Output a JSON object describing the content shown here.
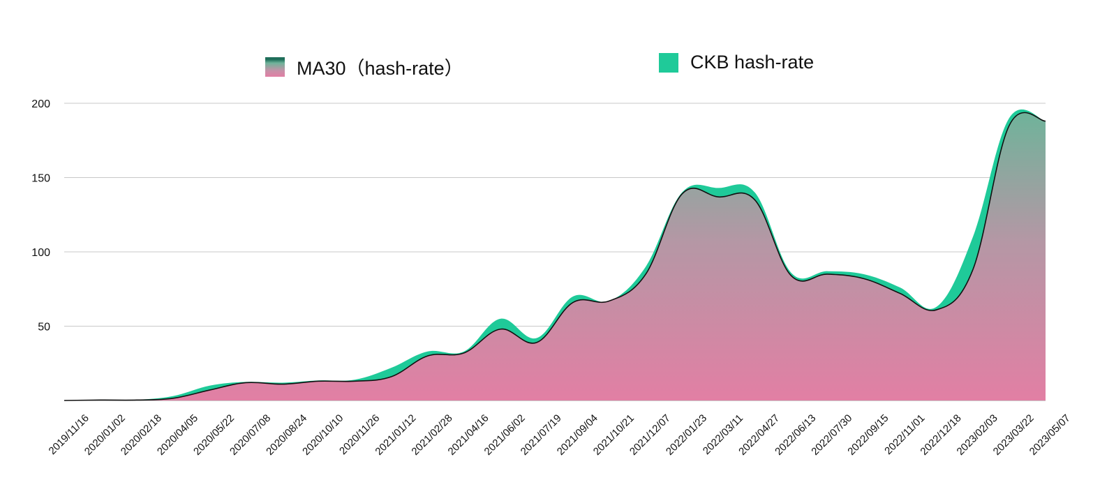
{
  "chart_data": {
    "type": "area",
    "title": "",
    "xlabel": "",
    "ylabel": "",
    "ylim": [
      0,
      200
    ],
    "y_ticks": [
      "200",
      "150",
      "100",
      "50"
    ],
    "grid": true,
    "legend_placement": "top",
    "x_tick_labels": [
      "2019/11/16",
      "2020/01/02",
      "2020/02/18",
      "2020/04/05",
      "2020/05/22",
      "2020/07/08",
      "2020/08/24",
      "2020/10/10",
      "2020/11/26",
      "2021/01/12",
      "2021/02/28",
      "2021/04/16",
      "2021/06/02",
      "2021/07/19",
      "2021/09/04",
      "2021/10/21",
      "2021/12/07",
      "2022/01/23",
      "2022/03/11",
      "2022/04/27",
      "2022/06/13",
      "2022/07/30",
      "2022/09/15",
      "2022/11/01",
      "2022/12/18",
      "2023/02/03",
      "2023/03/22",
      "2023/05/07"
    ],
    "x": [
      "2019/11/16",
      "2020/01/02",
      "2020/02/18",
      "2020/04/05",
      "2020/05/22",
      "2020/07/08",
      "2020/08/24",
      "2020/10/10",
      "2020/11/26",
      "2021/01/12",
      "2021/02/28",
      "2021/04/16",
      "2021/06/02",
      "2021/07/19",
      "2021/09/04",
      "2021/10/21",
      "2021/12/07",
      "2022/01/23",
      "2022/03/11",
      "2022/04/27",
      "2022/06/13",
      "2022/07/30",
      "2022/09/15",
      "2022/11/01",
      "2022/12/18",
      "2023/02/03",
      "2023/03/22",
      "2023/05/07"
    ],
    "series": [
      {
        "name": "CKB hash-rate",
        "color": "#1fca99",
        "values": [
          0,
          0.5,
          0.5,
          3,
          10,
          12.5,
          12,
          13.5,
          14,
          22,
          33,
          33,
          55,
          42,
          70,
          67,
          90,
          140,
          143,
          140,
          86,
          87,
          85,
          76,
          63,
          110,
          190,
          188
        ]
      },
      {
        "name": "MA30（hash-rate）",
        "color_top": "#6fb39a",
        "color_bottom": "#e27fa4",
        "values": [
          0,
          0.3,
          0.3,
          1.5,
          7,
          12,
          11,
          13,
          13,
          16,
          30,
          32,
          48,
          39,
          66,
          67,
          85,
          139,
          137,
          135,
          84,
          85,
          82,
          72,
          61,
          88,
          185,
          188
        ]
      }
    ]
  },
  "legend": {
    "ma30_label": "MA30（hash-rate）",
    "ckb_label": "CKB hash-rate"
  }
}
